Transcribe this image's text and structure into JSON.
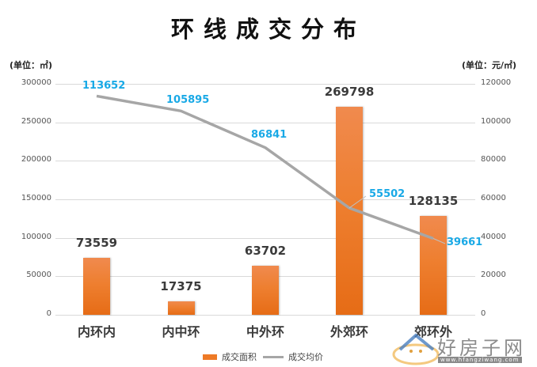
{
  "title": "环线成交分布",
  "left_axis_unit": "(单位：㎡)",
  "right_axis_unit": "(单位：元/㎡)",
  "colors": {
    "bar": "#EE7A26",
    "line": "#A6A6A6",
    "line_label": "#19A9E6",
    "bar_label": "#3B3B3B"
  },
  "legend": {
    "bar_label": "成交面积",
    "line_label": "成交均价"
  },
  "watermark": {
    "text": "好房子网",
    "url": "www.hfangziwang.com"
  },
  "left_ticks": [
    "300000",
    "250000",
    "200000",
    "150000",
    "100000",
    "50000",
    "0"
  ],
  "right_ticks": [
    "120000",
    "100000",
    "80000",
    "60000",
    "40000",
    "20000",
    "0"
  ],
  "chart_data": {
    "type": "bar+line",
    "title": "环线成交分布",
    "categories": [
      "内环内",
      "内中环",
      "中外环",
      "外郊环",
      "郊环外"
    ],
    "series": [
      {
        "name": "成交面积",
        "type": "bar",
        "axis": "left",
        "unit": "㎡",
        "values": [
          73559,
          17375,
          63702,
          269798,
          128135
        ]
      },
      {
        "name": "成交均价",
        "type": "line",
        "axis": "right",
        "unit": "元/㎡",
        "values": [
          113652,
          105895,
          86841,
          55502,
          39661
        ]
      }
    ],
    "ylabel_left": "(单位：㎡)",
    "ylabel_right": "(单位：元/㎡)",
    "ylim_left": [
      0,
      300000
    ],
    "ylim_right": [
      0,
      120000
    ],
    "grid": true,
    "legend_position": "bottom"
  }
}
